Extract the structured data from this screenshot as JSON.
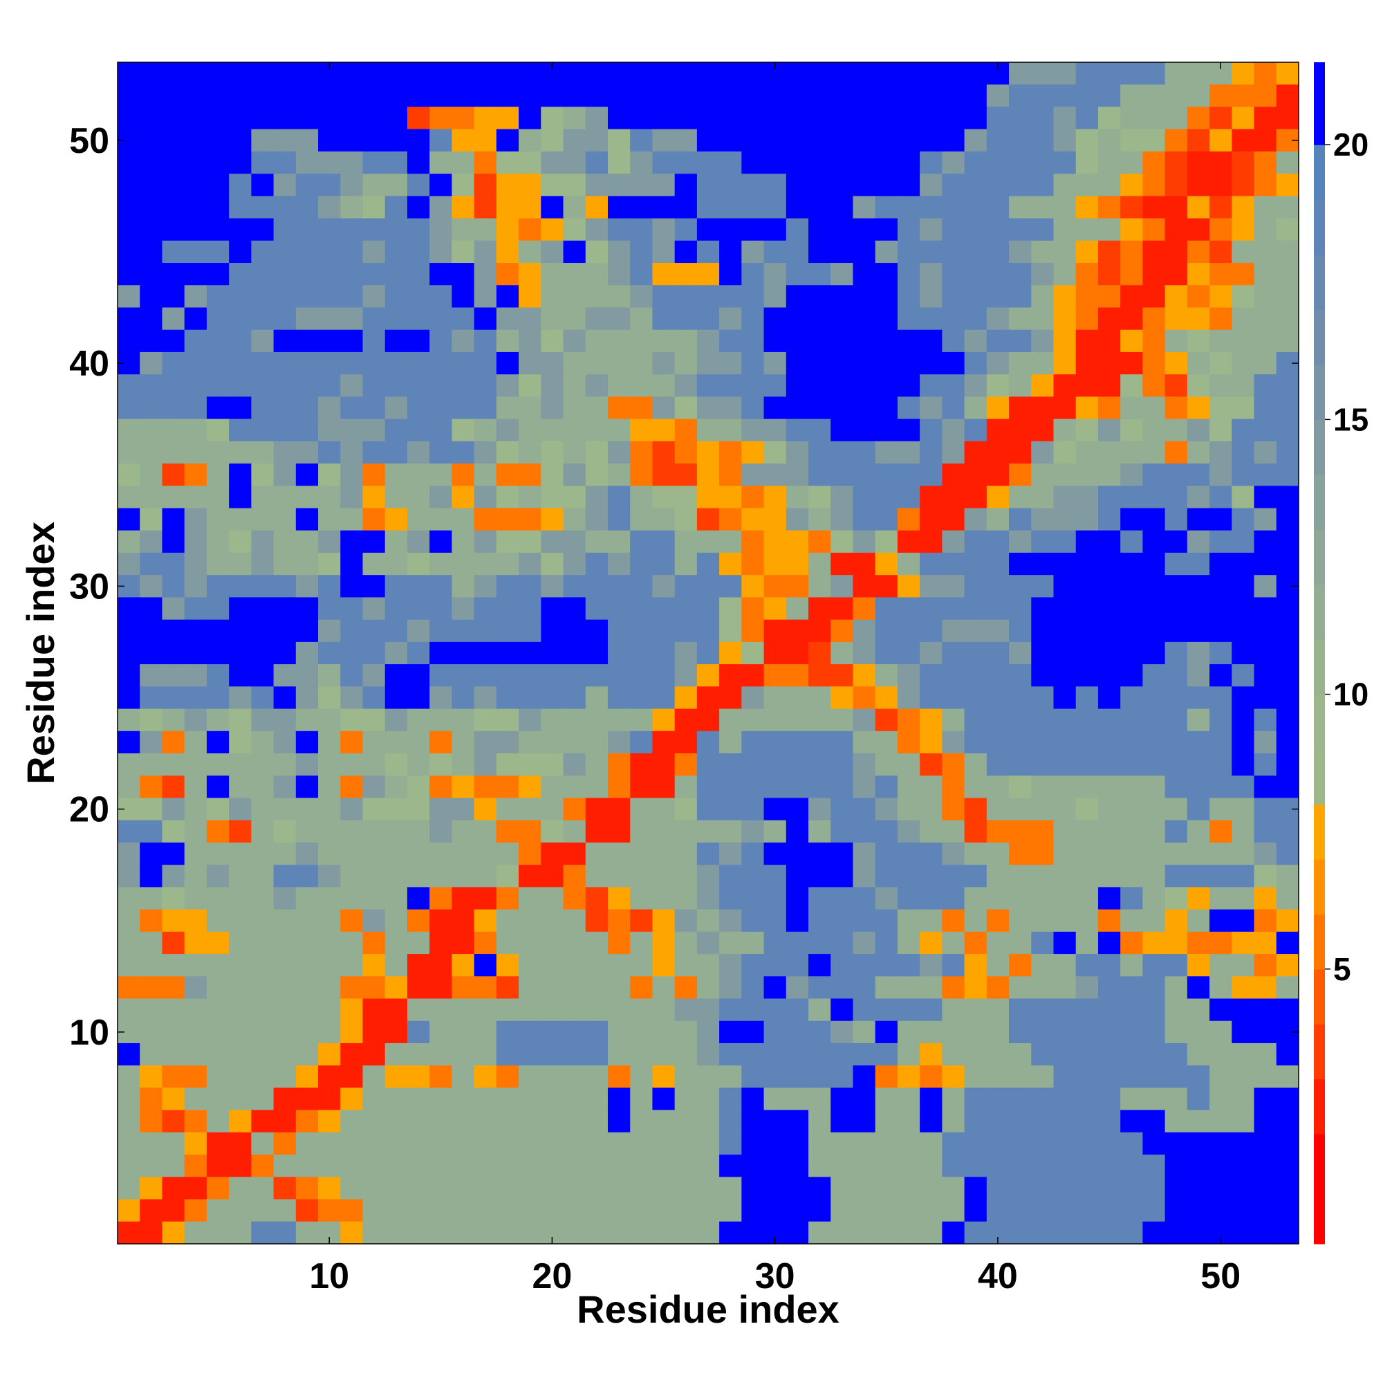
{
  "chart_data": {
    "type": "heatmap",
    "title": "",
    "xlabel": "Residue index",
    "ylabel": "Residue index",
    "n": 53,
    "xlim": [
      0.5,
      53.5
    ],
    "ylim": [
      0.5,
      53.5
    ],
    "x_ticks": [
      "10",
      "20",
      "30",
      "40",
      "50"
    ],
    "y_ticks": [
      "10",
      "20",
      "30",
      "40",
      "50"
    ],
    "colorbar": {
      "range": [
        0,
        21.5
      ],
      "ticks": [
        "5",
        "10",
        "15",
        "20"
      ],
      "levels": [
        {
          "max": 1,
          "color": "#ff0000"
        },
        {
          "max": 2,
          "color": "#ff0000"
        },
        {
          "max": 3,
          "color": "#ff1f00"
        },
        {
          "max": 4,
          "color": "#ff3d00"
        },
        {
          "max": 5,
          "color": "#ff5a00"
        },
        {
          "max": 6,
          "color": "#ff7700"
        },
        {
          "max": 7,
          "color": "#ff9000"
        },
        {
          "max": 8,
          "color": "#ffa500"
        },
        {
          "max": 9,
          "color": "#9db88b"
        },
        {
          "max": 10,
          "color": "#9cb78c"
        },
        {
          "max": 11,
          "color": "#98b48f"
        },
        {
          "max": 12,
          "color": "#93ae93"
        },
        {
          "max": 13,
          "color": "#8ea898"
        },
        {
          "max": 14,
          "color": "#88a29c"
        },
        {
          "max": 15,
          "color": "#829ba1"
        },
        {
          "max": 16,
          "color": "#7a94a7"
        },
        {
          "max": 17,
          "color": "#708dad"
        },
        {
          "max": 18,
          "color": "#6888b2"
        },
        {
          "max": 19,
          "color": "#5e84b8"
        },
        {
          "max": 20,
          "color": "#5583bb"
        },
        {
          "max": 21.5,
          "color": "#0000ff"
        }
      ]
    },
    "map_legend": {
      "R": "contact, 0-3",
      "r": "4",
      "o": "6",
      "y": "7.5",
      "g": "10",
      "G": "12",
      "s": "15",
      "b": "18.5",
      "B": "21.5"
    },
    "rows_top_to_bottom": [
      "BBBBBBBBBBBBBBBBBBBBBBBBBBBBBBBBBBBBBBBBsssbbbbGGGyoyRR",
      "BBBBBBBBBBBBBBBBBBBBBBBBBBBBBBBBBBBBBBBsbbbbbGGGGoooRRo",
      "BBBBBBBBBBBBBrooyyBgGsBBBBBBBBBBBBBBBBBbbbsbgGGGoryRRyy",
      "BBBBBBsssBBBBBbyyBGgssgbssBBBBBBBBBBBBsbbbsgGggoryRRoyG",
      "BBBBBBbbsssbbBGGoggssbgsbbbbBBBBBBBBbsbbbbbgGGorRRroGg",
      "BBBBBbBsbbsGGbBgryyggssssBbbbbBBBBBBsbbbbbGGGyorRRroyG",
      "BBBBBbbbbsGgbBsyryyBGyBBBBbbbbBBBsbbbbbbGGGyorRRyryGGG",
      "BBBBBBBbbbbbbbsGGyoygsbbsbBBBBbBBBBbsbbbbbGGGyoRRoyGgG",
      "BBbbbBbbbbbsbbsgsyGsBgsbsBbBsbbBBBsbbbbbsGGyroRRorGGG",
      "BBBBBbbbbbbbbbBBsoyGGGsbyyyBbsbbsBBbsbbbbsGoroRRyooGGGG",
      "sBBsbbbbbbbsbbbBsByGGGGsbbbbbsBBBBBbsbbbbGyooRRyoygGGG",
      "BBsBbbbbsssbbbbbBssGGssGbbbsbBBBBBBbbbbsGGyoRRoyyoGGGb",
      "BBBbbbsBBBBbBBbsbGsgsGGGGGsbbBBBBBBBBbsbbsyRRyoGgGGGGb",
      "BsbbbbbbbbbbbbbbbBssGGGGsGssbsBBBBBBBBbsGGyRRRoyGgGGbb",
      "bbbbbbbbbbsbbbbbbsgsGsGGGsbbbbBBBBBBbbsgGyRRRgorgGGbbbs",
      "bbbbBBbbbsbbsbbbbGGsGGoosgssbBBBBBBbsbGyRRRyoGGoyggbbbb",
      "GGGGgbbbbsssbbbgGsGGGGGyyoGGssbbBBBBbsbRRRGgsgGGsgbbbbB",
      "GGGGGGGssbsbbsbbsgGgGgsoroyoygsbbbssbsRRRsgGGGGoGsbsbbBB",
      "gGroGBgsBgsoGGGoGoogsgGorryosssbbbbbbRRRoGGGGsbbbsbbbBB",
      "GGGGGBGGGGsyGGsysgGggsbGggyyoyGgsbbbRRRyGGssbbbbsbgBBsBB",
      "BgBsGGGGBGGoyGGGoooyGsbGGgroyysGsbboRRsGbsssbBBbBBbsBBB",
      "GsBsGgsGGsBBGsBGsggssGGbbGGGoyyogsgRRsbbsbbBBbBBsbbBBBB",
      "sbbsGGsGGgBGGgGGGGsgsbsbbGbyoyyGRRyGbbbbBBBBBBBbbBBBB",
      "bsbsbbbbsbBBbbbGsbbsbbbbsbbbyooGsRRyssbbbbBBBBBBBBBsBBB",
      "BBsbbBBBBbbsbbbsbbbBBbbbbbbgoyGRRobbbbbbbBBBBBBBBBBBBBBB",
      "BBBBBBBBBsbbbsbbbbbBBBbbbbbgoRRRosbbbsssbBBBBBBBBBBBBBB",
      "BBBBBBBBsbbbsbBBBBBBBBbbbsbygRRrGsbbsbbbsBBBBBBbsbBBBBB",
      "BsssbBBssGbsBBbbbbbbbbbbbsyRRoorryGsbbbbbBBBBBbbsBbBBBB",
      "BbbbbsbBsgsbBBsbsbbbbGbbbyRRsGGGyoysbbbbbbBbBbbbbbBBBBB",
      "GgGsGgssGGggsGGGggsGGGGGyRRGGGGGGsroyGbbbbbbbbbbGbBbBBB",
      "BsoGBgGsBGoGGGoGssGGGGsbRRbGbbbbbGGoysbbbbbbbbbbbbBsBBB",
      "GGGGGGGGsGGGgGgGsgggsGoRRobbbbbbbsGGroGbbbbbbbbbbbBbBBB",
      "GorGBGGsBGosGgoyooyGGGoRRGbbbbbbbsbGGoGGgGGGGGGbbbbBBbBBB",
      "ggsGgsGGGGsgggssyGGGoRRGGgbbbBBsbbsGGorGGGGgGGGGbGGbbBB",
      "bbgGorGgGGGGGGsGGoogGRRGGGGGsGBGbbbsGGroooGGGGGbGoGbbBB",
      "sBBGGGGGsGGGGGGGGGoRRGGGGGbsbBBBBsbbbsGGooGGGGGGGGGsbBBB",
      "sBsGsGGbbsGGGGGGGgRRoGGGGGsbbbBBBsbbbbbGGGGGGGGbbbbgGBBB",
      "GGgGGGGsGGGGGBoRRoGGoryGGGsbbbBbbbsbbbGGGGGGBbGgyGGyGyB",
      "GoyyGGGGGGosGoRRyGGGGrorysGsbbBbbbbGGoGoGGGGoGGyGBBoyB",
      "GGryyGGGGGGoGGRRoGGGGGoGyGsGGbbbbsbGyGoGGbBGBoyyooyyBooB",
      "GGGGGGGGGGGyGRRyByGGGGGGyGGsbbbBbbbbsbyGoGGbbGbbyGGoyyoB",
      "ooosGGGGGGooyRRoorGGGGGoGoGsbBsbbbGGGoyoGGGsbbbGBGyyGGoB",
      "GGGGGGGGGGyRRGGGGGGGGGGGGssbbbbGBbbbbGGGbbbbbbbGGBBBBBBB",
      "GGGGGGGGGGyRRbGGGbbbbbGGGGsBBbbbsGBGGGGGbbbbbbbGGGBBBBBBB",
      "BGGGGGGGGyRRGGGGGbbbbbGGGGsbbbbbbbbGyGGGGbbbbbbbGGGGBBBBB",
      "GyooGGGGyRRGyyoGyoGGGGoGyGGGbbbbbBoyoyGGGGbbbbbbbGGGGBBBBB",
      "GoyGGGGRRRyGGGGGGGGGGGBGBGGbBGGGBBGGBGbbbbbbbGGGbGGBBBBB",
      "GoroGyRRoyGGGGGGGGGGGGBGGGGbBBBGBBGGBGbbbbbbbBBGGGGBBBBBB",
      "GGGyRRGoGGGGGGGGGGGGGGGGGGGbBBBGGGGGGbbbbbbbbbBBBBBBBBBB",
      "GGGoRRoGGGGGGGGGGGGGGGGGGGGBBBBGGGGGGbbbbbbbbbbBBBBBBBBB",
      "GyRRoGGroyGGGGGGGGGGGGGGGGGGBBBBGGGGGGBbbbbbbbbBBBBBBBBBB",
      "yRRoGGGGrooGGGGGGGGGGGGGGGGGBBBBGGGGGGBbbbbbbbbBBBBBBBBBB",
      "RRyGGGbbGGyGGGGGGGGGGGGGGGGBBBBGGGGGGBbbbbbbbbBBBBBBBBBBB"
    ]
  }
}
